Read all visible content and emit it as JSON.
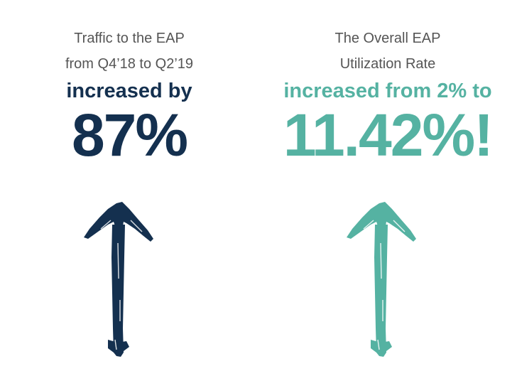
{
  "colors": {
    "dark_navy": "#14304f",
    "teal": "#55b2a2",
    "caption_gray": "#555555"
  },
  "left_panel": {
    "caption_line1": "Traffic to the EAP",
    "caption_line2": "from Q4’18 to Q2’19",
    "lead_text": "increased by",
    "big_value": "87%",
    "arrow_icon": "up-arrow-icon"
  },
  "right_panel": {
    "caption_line1": "The Overall EAP",
    "caption_line2": "Utilization Rate",
    "lead_text": "increased from 2% to",
    "big_value": "11.42%!",
    "arrow_icon": "up-arrow-icon"
  }
}
